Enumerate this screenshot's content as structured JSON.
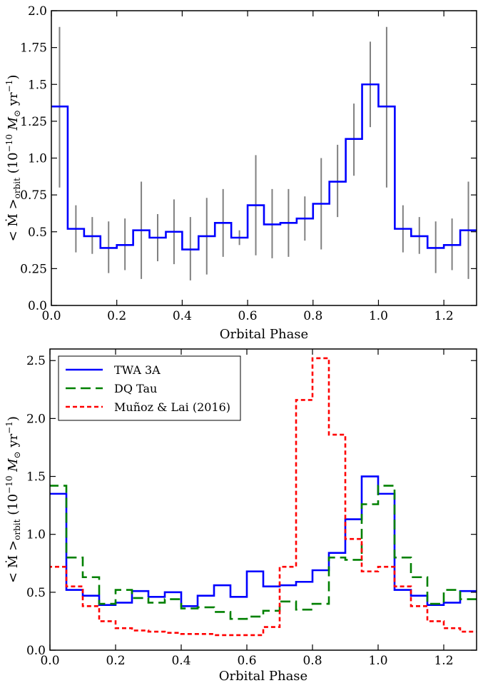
{
  "chart_data": [
    {
      "type": "line",
      "style": "step",
      "xlabel": "Orbital Phase",
      "ylabel": "< Ṁ >orbit (10⁻¹⁰ M⊙ yr⁻¹)",
      "ylabel_parts": {
        "pre": "< ",
        "mdot": "Ṁ",
        "post": " >",
        "sub": "orbit",
        "unit": " (10",
        "exp1": "−10",
        "msun": " M",
        "sunsym": "⊙",
        "yr": " yr",
        "exp2": "−1",
        "close": ")"
      },
      "xlim": [
        0.0,
        1.3
      ],
      "ylim": [
        0.0,
        2.0
      ],
      "xticks": [
        0.0,
        0.2,
        0.4,
        0.6,
        0.8,
        1.0,
        1.2
      ],
      "xtick_labels": [
        "0.0",
        "0.2",
        "0.4",
        "0.6",
        "0.8",
        "1.0",
        "1.2"
      ],
      "yticks": [
        0.0,
        0.25,
        0.5,
        0.75,
        1.0,
        1.25,
        1.5,
        1.75,
        2.0
      ],
      "ytick_labels": [
        "0.0",
        "0.25",
        "0.5",
        "0.75",
        "1.0",
        "1.25",
        "1.5",
        "1.75",
        "2.0"
      ],
      "series": [
        {
          "color": "#0000ff",
          "bin_edges": [
            -0.05,
            0.05,
            0.1,
            0.15,
            0.2,
            0.25,
            0.3,
            0.35,
            0.4,
            0.45,
            0.5,
            0.55,
            0.6,
            0.65,
            0.7,
            0.75,
            0.8,
            0.85,
            0.9,
            0.95,
            1.0,
            1.05,
            1.1,
            1.15,
            1.2,
            1.25,
            1.3
          ],
          "values": [
            1.35,
            0.52,
            0.47,
            0.39,
            0.41,
            0.51,
            0.46,
            0.5,
            0.38,
            0.47,
            0.56,
            0.46,
            0.68,
            0.55,
            0.56,
            0.59,
            0.69,
            0.84,
            1.13,
            1.5,
            1.35,
            0.52,
            0.47,
            0.39,
            0.41,
            0.51
          ],
          "error_bars": {
            "color": "#808080",
            "x": [
              0.025,
              0.075,
              0.125,
              0.175,
              0.225,
              0.275,
              0.325,
              0.375,
              0.425,
              0.475,
              0.525,
              0.575,
              0.625,
              0.675,
              0.725,
              0.775,
              0.825,
              0.875,
              0.925,
              0.975,
              1.025,
              1.075,
              1.125,
              1.175,
              1.225,
              1.275
            ],
            "low": [
              0.8,
              0.36,
              0.35,
              0.22,
              0.24,
              0.18,
              0.3,
              0.28,
              0.17,
              0.21,
              0.33,
              0.41,
              0.34,
              0.32,
              0.33,
              0.44,
              0.38,
              0.6,
              0.88,
              1.21,
              0.8,
              0.36,
              0.35,
              0.22,
              0.24,
              0.18
            ],
            "high": [
              1.89,
              0.68,
              0.6,
              0.57,
              0.59,
              0.84,
              0.62,
              0.72,
              0.6,
              0.73,
              0.79,
              0.51,
              1.02,
              0.79,
              0.79,
              0.74,
              1.0,
              1.09,
              1.37,
              1.79,
              1.89,
              0.68,
              0.6,
              0.57,
              0.59,
              0.84
            ]
          }
        }
      ]
    },
    {
      "type": "line",
      "style": "step",
      "xlabel": "Orbital Phase",
      "ylabel_parts": {
        "pre": "< ",
        "mdot": "Ṁ",
        "post": " >",
        "sub": "orbit",
        "unit": " (10",
        "exp1": "−10",
        "msun": " M",
        "sunsym": "⊙",
        "yr": " yr",
        "exp2": "−1",
        "close": ")"
      },
      "xlim": [
        0.0,
        1.3
      ],
      "ylim": [
        0.0,
        2.6
      ],
      "xticks": [
        0.0,
        0.2,
        0.4,
        0.6,
        0.8,
        1.0,
        1.2
      ],
      "xtick_labels": [
        "0.0",
        "0.2",
        "0.4",
        "0.6",
        "0.8",
        "1.0",
        "1.2"
      ],
      "yticks": [
        0.0,
        0.5,
        1.0,
        1.5,
        2.0,
        2.5
      ],
      "ytick_labels": [
        "0.0",
        "0.5",
        "1.0",
        "1.5",
        "2.0",
        "2.5"
      ],
      "legend_position": "top-left",
      "series": [
        {
          "name": "TWA 3A",
          "color": "#0000ff",
          "dash": "solid",
          "bin_edges": [
            -0.05,
            0.05,
            0.1,
            0.15,
            0.2,
            0.25,
            0.3,
            0.35,
            0.4,
            0.45,
            0.5,
            0.55,
            0.6,
            0.65,
            0.7,
            0.75,
            0.8,
            0.85,
            0.9,
            0.95,
            1.0,
            1.05,
            1.1,
            1.15,
            1.2,
            1.25,
            1.3
          ],
          "values": [
            1.35,
            0.52,
            0.47,
            0.39,
            0.41,
            0.51,
            0.46,
            0.5,
            0.38,
            0.47,
            0.56,
            0.46,
            0.68,
            0.55,
            0.56,
            0.59,
            0.69,
            0.84,
            1.13,
            1.5,
            1.35,
            0.52,
            0.47,
            0.39,
            0.41,
            0.51
          ]
        },
        {
          "name": "DQ Tau",
          "color": "#008000",
          "dash": "long",
          "bin_edges": [
            -0.05,
            0.05,
            0.1,
            0.15,
            0.2,
            0.25,
            0.3,
            0.35,
            0.4,
            0.45,
            0.5,
            0.55,
            0.6,
            0.65,
            0.7,
            0.75,
            0.8,
            0.85,
            0.9,
            0.95,
            1.0,
            1.05,
            1.1,
            1.15,
            1.2,
            1.25,
            1.3
          ],
          "values": [
            1.42,
            0.8,
            0.63,
            0.4,
            0.52,
            0.45,
            0.41,
            0.44,
            0.36,
            0.37,
            0.33,
            0.27,
            0.29,
            0.34,
            0.42,
            0.35,
            0.4,
            0.8,
            0.78,
            1.26,
            1.42,
            0.8,
            0.63,
            0.4,
            0.52,
            0.44
          ]
        },
        {
          "name": "Muñoz & Lai (2016)",
          "color": "#ff0000",
          "dash": "short",
          "bin_edges": [
            -0.05,
            0.05,
            0.1,
            0.15,
            0.2,
            0.25,
            0.3,
            0.35,
            0.4,
            0.45,
            0.5,
            0.55,
            0.6,
            0.65,
            0.7,
            0.75,
            0.8,
            0.85,
            0.9,
            0.95,
            1.0,
            1.05,
            1.1,
            1.15,
            1.2,
            1.25,
            1.3
          ],
          "values": [
            0.72,
            0.55,
            0.38,
            0.25,
            0.19,
            0.17,
            0.16,
            0.15,
            0.14,
            0.14,
            0.13,
            0.13,
            0.13,
            0.2,
            0.72,
            2.16,
            2.52,
            1.86,
            0.96,
            0.68,
            0.72,
            0.55,
            0.38,
            0.25,
            0.19,
            0.16
          ]
        }
      ]
    }
  ]
}
